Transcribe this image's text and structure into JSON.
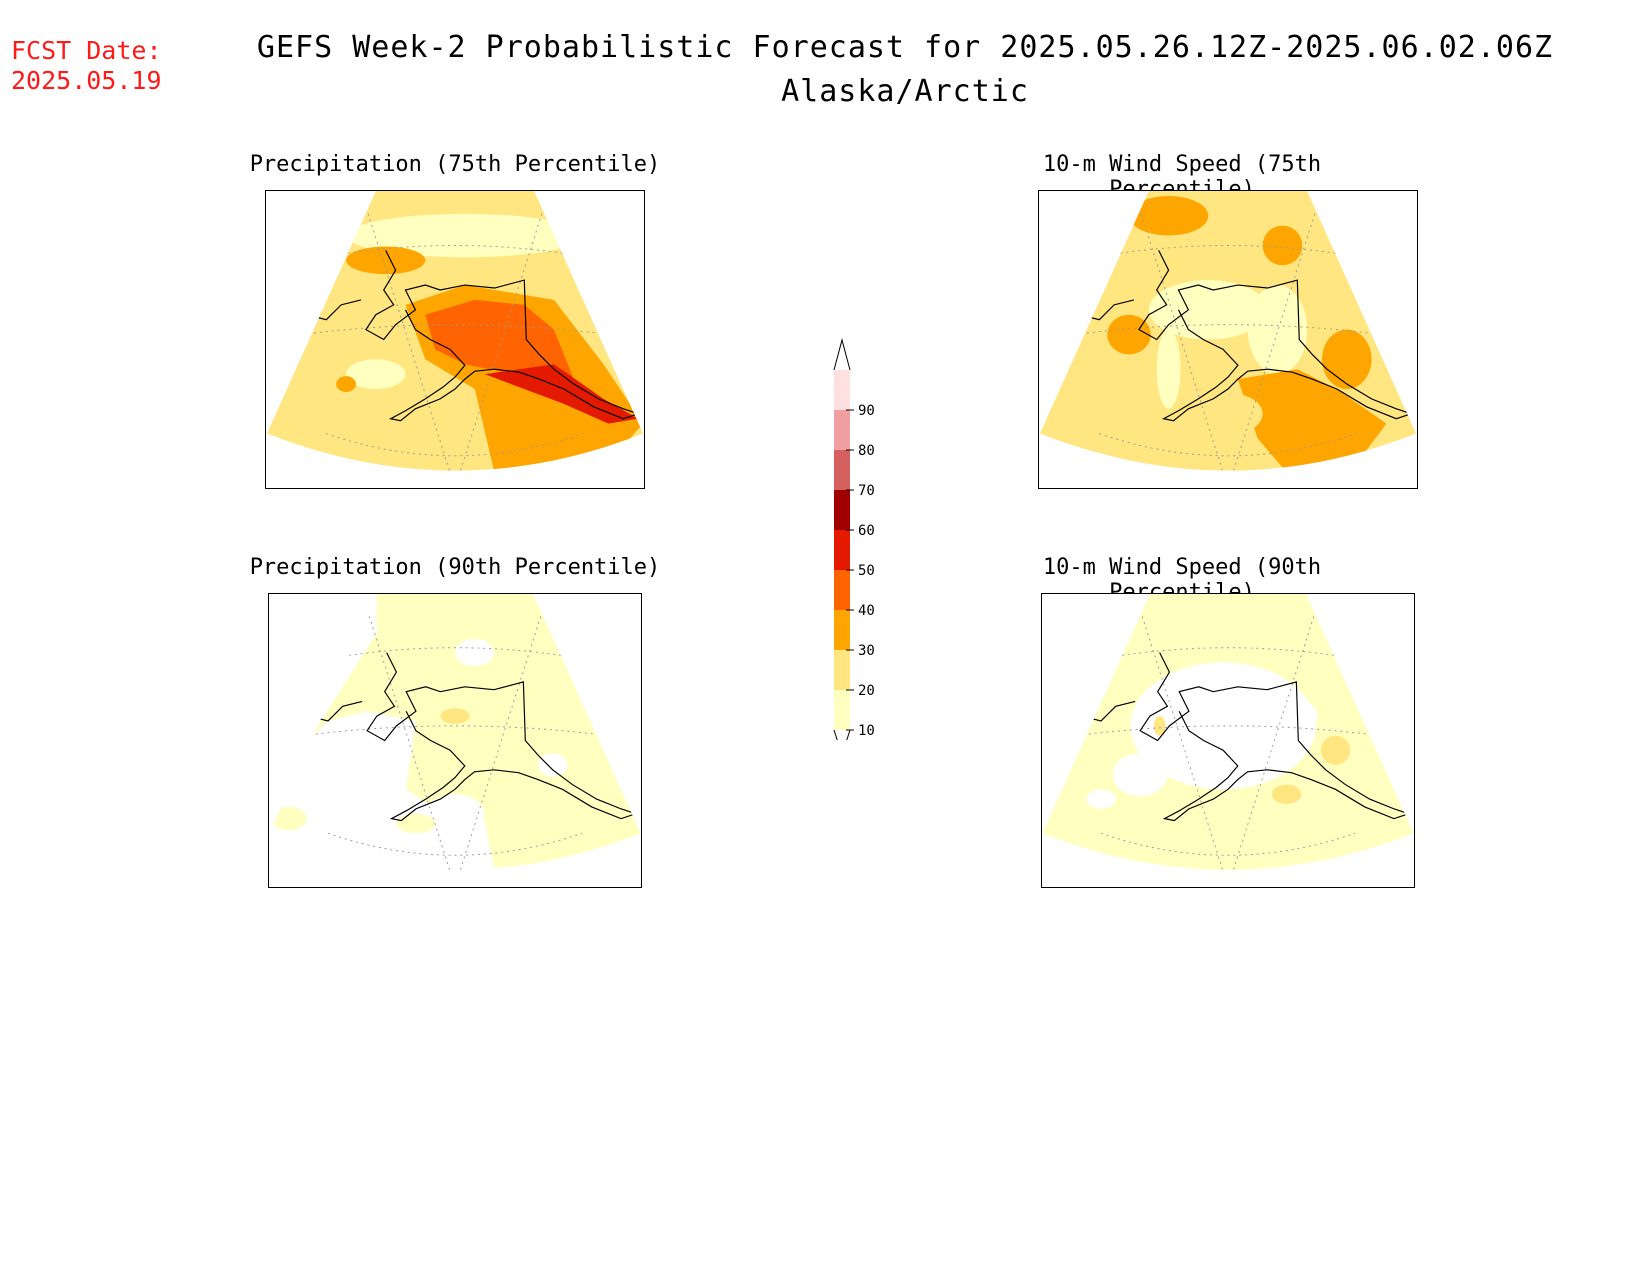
{
  "header": {
    "fcst_label": "FCST Date:",
    "fcst_date": "2025.05.19",
    "title": "GEFS Week-2 Probabilistic Forecast for 2025.05.26.12Z-2025.06.02.06Z",
    "subtitle": "Alaska/Arctic"
  },
  "panels": [
    {
      "title": "Precipitation (75th Percentile)",
      "variant": "precip75"
    },
    {
      "title": "10-m Wind Speed (75th Percentile)",
      "variant": "wind75"
    },
    {
      "title": "Precipitation (90th Percentile)",
      "variant": "precip90"
    },
    {
      "title": "10-m Wind Speed (90th Percentile)",
      "variant": "wind90"
    }
  ],
  "colorbar": {
    "levels": [
      "10",
      "20",
      "30",
      "40",
      "50",
      "60",
      "70",
      "80",
      "90"
    ],
    "colors": [
      "#ffffc0",
      "#ffe680",
      "#ffa500",
      "#ff6400",
      "#e41a00",
      "#a00000",
      "#d46060",
      "#f0a0a0",
      "#ffe0e0"
    ]
  }
}
